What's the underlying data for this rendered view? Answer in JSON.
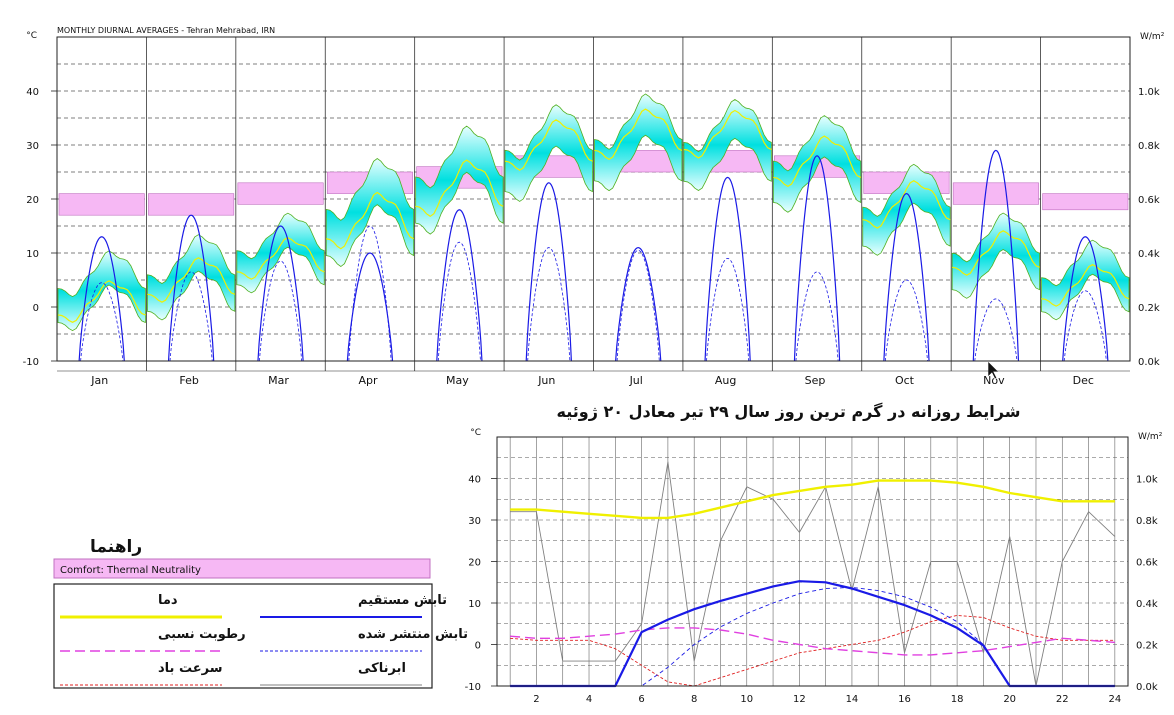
{
  "chart_data": [
    {
      "type": "line",
      "title": "MONTHLY DIURNAL AVERAGES - Tehran Mehrabad, IRN",
      "ylabel": "°C",
      "y2label": "W/m²",
      "ylim": [
        -10,
        50
      ],
      "y2lim": [
        0,
        1200
      ],
      "y_ticks": [
        "-10",
        "0",
        "10",
        "20",
        "30",
        "40"
      ],
      "y2_ticks": [
        "0.0k",
        "0.2k",
        "0.4k",
        "0.6k",
        "0.8k",
        "1.0k"
      ],
      "grid": true,
      "categories": [
        "Jan",
        "Feb",
        "Mar",
        "Apr",
        "May",
        "Jun",
        "Jul",
        "Aug",
        "Sep",
        "Oct",
        "Nov",
        "Dec"
      ],
      "comfort_band": [
        [
          17,
          21
        ],
        [
          17,
          21
        ],
        [
          19,
          23
        ],
        [
          21,
          25
        ],
        [
          22,
          26
        ],
        [
          24,
          28
        ],
        [
          25,
          29
        ],
        [
          25,
          29
        ],
        [
          24,
          28
        ],
        [
          21,
          25
        ],
        [
          19,
          23
        ],
        [
          18,
          21
        ]
      ],
      "temp_mean": [
        1,
        5,
        9,
        16,
        22,
        30,
        32,
        32,
        27,
        19,
        10,
        4
      ],
      "temp_min": [
        -4,
        -2,
        3,
        8,
        14,
        20,
        22,
        22,
        18,
        10,
        2,
        -2
      ],
      "temp_max": [
        10,
        13,
        17,
        27,
        33,
        37,
        39,
        38,
        35,
        26,
        17,
        12
      ],
      "direct_radiation_peak": [
        460,
        540,
        500,
        400,
        560,
        660,
        420,
        680,
        760,
        620,
        780,
        460
      ],
      "diffuse_radiation_peak": [
        290,
        330,
        370,
        500,
        440,
        420,
        410,
        380,
        330,
        300,
        230,
        260
      ],
      "series": [
        {
          "name": "دما",
          "color": "#f0f000"
        },
        {
          "name": "تابش مستقیم",
          "color": "#1a1ae6"
        },
        {
          "name": "تابش منتشر شده",
          "color": "#1a1ae6"
        }
      ],
      "cursor_label": "Nov"
    },
    {
      "type": "line",
      "title": "شرایط روزانه در گرم ترین روز سال ۲۹ تیر معادل ۲۰ ژوئیه",
      "ylabel": "°C",
      "y2label": "W/m²",
      "ylim": [
        -10,
        50
      ],
      "y2lim": [
        0,
        1200
      ],
      "y_ticks": [
        "-10",
        "0",
        "10",
        "20",
        "30",
        "40"
      ],
      "y2_ticks": [
        "0.0k",
        "0.2k",
        "0.4k",
        "0.6k",
        "0.8k",
        "1.0k"
      ],
      "x_ticks": [
        "2",
        "4",
        "6",
        "8",
        "10",
        "12",
        "14",
        "16",
        "18",
        "20",
        "22",
        "24"
      ],
      "xlim": [
        0.5,
        24.5
      ],
      "grid": true,
      "x": [
        1,
        2,
        3,
        4,
        5,
        6,
        7,
        8,
        9,
        10,
        11,
        12,
        13,
        14,
        15,
        16,
        17,
        18,
        19,
        20,
        21,
        22,
        23,
        24
      ],
      "series": [
        {
          "name": "دما",
          "color": "#f0f000",
          "values": [
            32.5,
            32.5,
            32,
            31.5,
            31,
            30.5,
            30.5,
            31.5,
            33,
            34.5,
            36,
            37,
            38,
            38.5,
            39.5,
            39.5,
            39.5,
            39,
            38,
            36.5,
            35.5,
            34.5,
            34.5,
            34.5
          ]
        },
        {
          "name": "رطوبت نسبی",
          "color": "#e040e0",
          "values": [
            2,
            1.5,
            1.5,
            2,
            2.5,
            3.5,
            4,
            4,
            3.5,
            2.5,
            1,
            0,
            -1,
            -1.5,
            -2,
            -2.5,
            -2.5,
            -2,
            -1.5,
            -0.5,
            0.5,
            1.5,
            1,
            0.5
          ]
        },
        {
          "name": "سرعت باد",
          "color": "#e02020",
          "values": [
            1.5,
            1,
            1,
            1,
            -1,
            -5,
            -9,
            -10,
            -8,
            -6,
            -4,
            -2,
            -1,
            0,
            1,
            3,
            5.5,
            7,
            6.5,
            4,
            2,
            1,
            1,
            1
          ]
        },
        {
          "name": "ابرناکی",
          "color": "#808080",
          "values": [
            32,
            32,
            -4,
            -4,
            -4,
            5,
            44,
            -4,
            25,
            38,
            35,
            27,
            38,
            13,
            38,
            -2,
            20,
            20,
            -2,
            26,
            -10,
            20,
            32,
            26
          ]
        },
        {
          "name": "تابش مستقیم",
          "color": "#1a1ae6",
          "unit": "W/m²",
          "values": [
            0,
            0,
            0,
            0,
            0,
            260,
            320,
            370,
            410,
            445,
            480,
            505,
            500,
            470,
            430,
            390,
            340,
            280,
            195,
            0,
            0,
            0,
            0,
            0
          ]
        },
        {
          "name": "تابش منتشر شده",
          "color": "#1a1ae6",
          "unit": "W/m²",
          "values": [
            0,
            0,
            0,
            0,
            0,
            0,
            90,
            200,
            285,
            350,
            400,
            445,
            470,
            475,
            460,
            430,
            380,
            310,
            200,
            0,
            0,
            0,
            0,
            0
          ]
        }
      ]
    }
  ],
  "legend": {
    "title": "راهنما",
    "comfort_label": "Comfort: Thermal Neutrality",
    "items": {
      "temp": "دما",
      "direct": "تابش مستقیم",
      "humidity": "رطوبت نسبی",
      "diffuse": "تابش منتشر شده",
      "wind": "سرعت باد",
      "cloud": "ابرناکی"
    }
  },
  "colors": {
    "comfort": "#f6b8f4",
    "band": "#00e0e0",
    "temp": "#f0f000",
    "radiation": "#1a1ae6",
    "humidity": "#e040e0",
    "wind": "#e02020",
    "cloud": "#808080"
  }
}
